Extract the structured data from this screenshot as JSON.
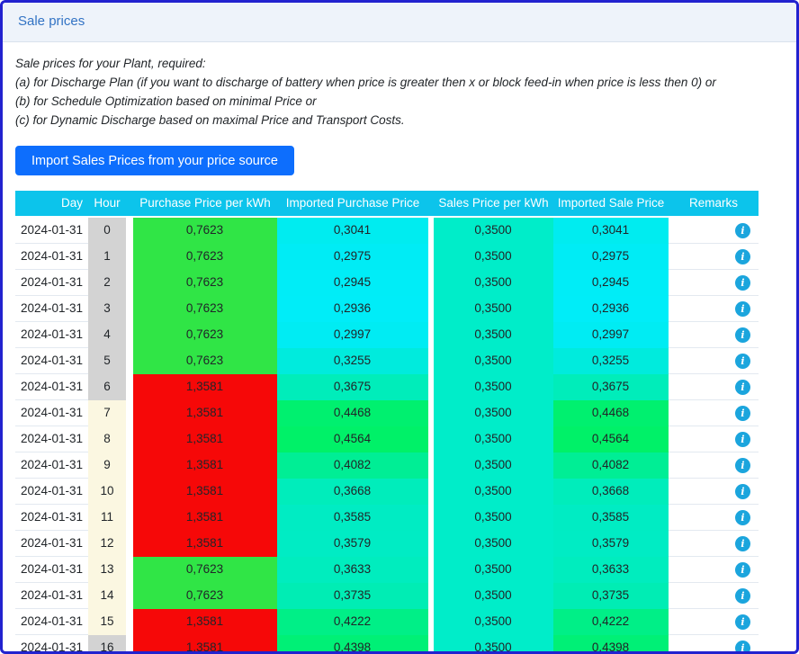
{
  "page": {
    "title": "Sale prices"
  },
  "description": {
    "lines": [
      "Sale prices for your Plant, required:",
      "(a) for Discharge Plan (if you want to discharge of battery when price is greater then x or block feed-in when price is less then 0) or",
      "(b) for Schedule Optimization based on minimal Price or",
      "(c) for Dynamic Discharge based on maximal Price and Transport Costs."
    ]
  },
  "import_button": {
    "label": "Import Sales Prices from your price source"
  },
  "icons": {
    "info": "i"
  },
  "colors": {
    "page_border": "#2222cf",
    "header_bar_bg": "#eef3fa",
    "title": "#3273c4",
    "button_bg": "#0d6efd",
    "table_header_bg": "#0cc4eb",
    "info_icon": "#1ba5dd",
    "hour_night": "#d3d3d3",
    "hour_day": "#fbf7e1",
    "purchase_low_green": "#30e546",
    "purchase_high_red": "#f60808",
    "sales_teal": "#00edc9"
  },
  "table": {
    "headers": {
      "day": "Day",
      "hour": "Hour",
      "purchase": "Purchase Price per kWh",
      "imported_purchase": "Imported Purchase Price",
      "sales": "Sales Price per kWh",
      "imported_sale": "Imported Sale Price",
      "remarks": "Remarks"
    },
    "rows": [
      {
        "day": "2024-01-31",
        "hour": "0",
        "hour_bg": "#d3d3d3",
        "purchase": "0,7623",
        "purchase_bg": "#30e546",
        "imported_purchase": "0,3041",
        "imported_purchase_bg": "#00ecf0",
        "sales": "0,3500",
        "sales_bg": "#00edc9",
        "imported_sale": "0,3041",
        "imported_sale_bg": "#00ecf0"
      },
      {
        "day": "2024-01-31",
        "hour": "1",
        "hour_bg": "#d3d3d3",
        "purchase": "0,7623",
        "purchase_bg": "#30e546",
        "imported_purchase": "0,2975",
        "imported_purchase_bg": "#00ecf5",
        "sales": "0,3500",
        "sales_bg": "#00edc9",
        "imported_sale": "0,2975",
        "imported_sale_bg": "#00ecf5"
      },
      {
        "day": "2024-01-31",
        "hour": "2",
        "hour_bg": "#d3d3d3",
        "purchase": "0,7623",
        "purchase_bg": "#30e546",
        "imported_purchase": "0,2945",
        "imported_purchase_bg": "#00edf7",
        "sales": "0,3500",
        "sales_bg": "#00edc9",
        "imported_sale": "0,2945",
        "imported_sale_bg": "#00edf7"
      },
      {
        "day": "2024-01-31",
        "hour": "3",
        "hour_bg": "#d3d3d3",
        "purchase": "0,7623",
        "purchase_bg": "#30e546",
        "imported_purchase": "0,2936",
        "imported_purchase_bg": "#00edf8",
        "sales": "0,3500",
        "sales_bg": "#00edc9",
        "imported_sale": "0,2936",
        "imported_sale_bg": "#00edf8"
      },
      {
        "day": "2024-01-31",
        "hour": "4",
        "hour_bg": "#d3d3d3",
        "purchase": "0,7623",
        "purchase_bg": "#30e546",
        "imported_purchase": "0,2997",
        "imported_purchase_bg": "#00ecf3",
        "sales": "0,3500",
        "sales_bg": "#00edc9",
        "imported_sale": "0,2997",
        "imported_sale_bg": "#00ecf3"
      },
      {
        "day": "2024-01-31",
        "hour": "5",
        "hour_bg": "#d3d3d3",
        "purchase": "0,7623",
        "purchase_bg": "#30e546",
        "imported_purchase": "0,3255",
        "imported_purchase_bg": "#00ebdd",
        "sales": "0,3500",
        "sales_bg": "#00edc9",
        "imported_sale": "0,3255",
        "imported_sale_bg": "#00ebdd"
      },
      {
        "day": "2024-01-31",
        "hour": "6",
        "hour_bg": "#d3d3d3",
        "purchase": "1,3581",
        "purchase_bg": "#f60808",
        "imported_purchase": "0,3675",
        "imported_purchase_bg": "#00edba",
        "sales": "0,3500",
        "sales_bg": "#00edc9",
        "imported_sale": "0,3675",
        "imported_sale_bg": "#00edba"
      },
      {
        "day": "2024-01-31",
        "hour": "7",
        "hour_bg": "#fbf7e1",
        "purchase": "1,3581",
        "purchase_bg": "#f60808",
        "imported_purchase": "0,4468",
        "imported_purchase_bg": "#00f06f",
        "sales": "0,3500",
        "sales_bg": "#00edc9",
        "imported_sale": "0,4468",
        "imported_sale_bg": "#00f06f"
      },
      {
        "day": "2024-01-31",
        "hour": "8",
        "hour_bg": "#fbf7e1",
        "purchase": "1,3581",
        "purchase_bg": "#f60808",
        "imported_purchase": "0,4564",
        "imported_purchase_bg": "#00f168",
        "sales": "0,3500",
        "sales_bg": "#00edc9",
        "imported_sale": "0,4564",
        "imported_sale_bg": "#00f168"
      },
      {
        "day": "2024-01-31",
        "hour": "9",
        "hour_bg": "#fbf7e1",
        "purchase": "1,3581",
        "purchase_bg": "#f60808",
        "imported_purchase": "0,4082",
        "imported_purchase_bg": "#00ee95",
        "sales": "0,3500",
        "sales_bg": "#00edc9",
        "imported_sale": "0,4082",
        "imported_sale_bg": "#00ee95"
      },
      {
        "day": "2024-01-31",
        "hour": "10",
        "hour_bg": "#fbf7e1",
        "purchase": "1,3581",
        "purchase_bg": "#f60808",
        "imported_purchase": "0,3668",
        "imported_purchase_bg": "#00edbb",
        "sales": "0,3500",
        "sales_bg": "#00edc9",
        "imported_sale": "0,3668",
        "imported_sale_bg": "#00edbb"
      },
      {
        "day": "2024-01-31",
        "hour": "11",
        "hour_bg": "#fbf7e1",
        "purchase": "1,3581",
        "purchase_bg": "#f60808",
        "imported_purchase": "0,3585",
        "imported_purchase_bg": "#00ecc3",
        "sales": "0,3500",
        "sales_bg": "#00edc9",
        "imported_sale": "0,3585",
        "imported_sale_bg": "#00ecc3"
      },
      {
        "day": "2024-01-31",
        "hour": "12",
        "hour_bg": "#fbf7e1",
        "purchase": "1,3581",
        "purchase_bg": "#f60808",
        "imported_purchase": "0,3579",
        "imported_purchase_bg": "#00ecc4",
        "sales": "0,3500",
        "sales_bg": "#00edc9",
        "imported_sale": "0,3579",
        "imported_sale_bg": "#00ecc4"
      },
      {
        "day": "2024-01-31",
        "hour": "13",
        "hour_bg": "#fbf7e1",
        "purchase": "0,7623",
        "purchase_bg": "#30e546",
        "imported_purchase": "0,3633",
        "imported_purchase_bg": "#00edbe",
        "sales": "0,3500",
        "sales_bg": "#00edc9",
        "imported_sale": "0,3633",
        "imported_sale_bg": "#00edbe"
      },
      {
        "day": "2024-01-31",
        "hour": "14",
        "hour_bg": "#fbf7e1",
        "purchase": "0,7623",
        "purchase_bg": "#30e546",
        "imported_purchase": "0,3735",
        "imported_purchase_bg": "#00edb4",
        "sales": "0,3500",
        "sales_bg": "#00edc9",
        "imported_sale": "0,3735",
        "imported_sale_bg": "#00edb4"
      },
      {
        "day": "2024-01-31",
        "hour": "15",
        "hour_bg": "#fbf7e1",
        "purchase": "1,3581",
        "purchase_bg": "#f60808",
        "imported_purchase": "0,4222",
        "imported_purchase_bg": "#00ef87",
        "sales": "0,3500",
        "sales_bg": "#00edc9",
        "imported_sale": "0,4222",
        "imported_sale_bg": "#00ef87"
      },
      {
        "day": "2024-01-31",
        "hour": "16",
        "hour_bg": "#d3d3d3",
        "purchase": "1,3581",
        "purchase_bg": "#f60808",
        "imported_purchase": "0,4398",
        "imported_purchase_bg": "#00f076",
        "sales": "0,3500",
        "sales_bg": "#00edc9",
        "imported_sale": "0,4398",
        "imported_sale_bg": "#00f076"
      }
    ]
  }
}
